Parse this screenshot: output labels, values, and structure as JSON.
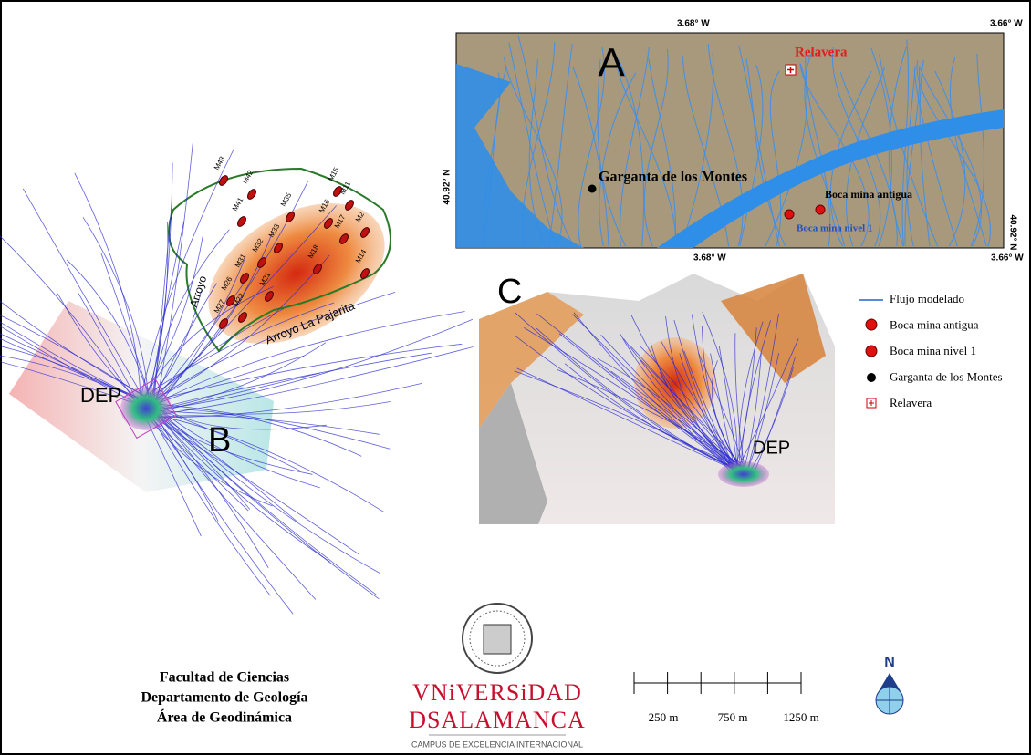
{
  "panel_a": {
    "label": "A",
    "coords": {
      "top_left": "3.68° W",
      "top_right": "3.66° W",
      "left": "40.92° N",
      "right": "40.92° N",
      "bottom_left": "3.68° W",
      "bottom_right": "3.66° W"
    },
    "places": {
      "relavera": "Relavera",
      "village": "Garganta de los Montes",
      "old_mine": "Boca mina antigua",
      "level1_mine": "Boca mina nivel 1"
    }
  },
  "panel_b": {
    "label": "B",
    "dep": "DEP",
    "streams": [
      "Arroyo",
      "Arroyo La Pajarita"
    ],
    "mines": [
      "M43",
      "M42",
      "M41",
      "M35",
      "M33",
      "M32",
      "M31",
      "M26",
      "M21",
      "M27",
      "M22",
      "M15",
      "M11",
      "M16",
      "M17",
      "M2",
      "M18",
      "M14"
    ]
  },
  "panel_c": {
    "label": "C",
    "dep": "DEP"
  },
  "legend": [
    "Flujo modelado",
    "Boca mina antigua",
    "Boca mina nivel 1",
    "Garganta de los Montes",
    "Relavera"
  ],
  "footer": {
    "institution": [
      "Facultad de Ciencias",
      "Departamento de Geología",
      "Área de Geodinámica"
    ],
    "university": {
      "line1": "VNiVERSiDAD",
      "line2": "DSALAMANCA",
      "tagline": "CAMPUS DE EXCELENCIA INTERNACIONAL"
    },
    "scale_labels": [
      "250 m",
      "750 m",
      "1250 m"
    ],
    "north": "N"
  }
}
